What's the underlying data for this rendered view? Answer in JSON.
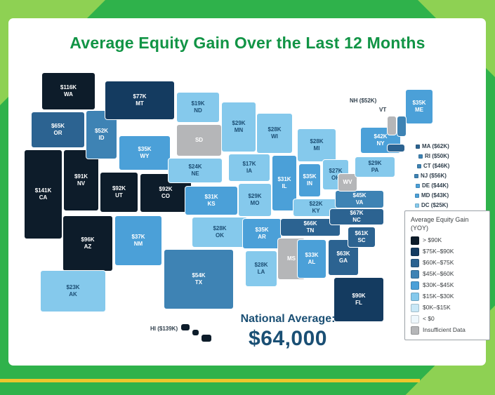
{
  "title": "Average Equity Gain Over the Last 12 Months",
  "national_average": {
    "label": "National Average:",
    "value": "$64,000"
  },
  "legend": {
    "title": "Average Equity Gain (YOY)",
    "items": [
      {
        "label": "> $90K",
        "color": "#0d1c2a"
      },
      {
        "label": "$75K–$90K",
        "color": "#143b60"
      },
      {
        "label": "$60K–$75K",
        "color": "#2c6391"
      },
      {
        "label": "$45K–$60K",
        "color": "#3e83b4"
      },
      {
        "label": "$30K–$45K",
        "color": "#4ba0d8"
      },
      {
        "label": "$15K–$30K",
        "color": "#85c9ec"
      },
      {
        "label": "$0K–$15K",
        "color": "#c9e8f7"
      },
      {
        "label": "< $0",
        "color": "#eef7fc"
      },
      {
        "label": "Insufficient Data",
        "color": "#b5b6b8"
      }
    ]
  },
  "map": {
    "states": [
      {
        "abbr": "WA",
        "value": "$116K",
        "bucket": 0
      },
      {
        "abbr": "OR",
        "value": "$65K",
        "bucket": 2
      },
      {
        "abbr": "CA",
        "value": "$141K",
        "bucket": 0
      },
      {
        "abbr": "NV",
        "value": "$91K",
        "bucket": 0
      },
      {
        "abbr": "ID",
        "value": "$52K",
        "bucket": 3
      },
      {
        "abbr": "MT",
        "value": "$77K",
        "bucket": 1
      },
      {
        "abbr": "WY",
        "value": "$35K",
        "bucket": 4
      },
      {
        "abbr": "UT",
        "value": "$92K",
        "bucket": 0
      },
      {
        "abbr": "CO",
        "value": "$92K",
        "bucket": 0
      },
      {
        "abbr": "AZ",
        "value": "$96K",
        "bucket": 0
      },
      {
        "abbr": "NM",
        "value": "$37K",
        "bucket": 4
      },
      {
        "abbr": "ND",
        "value": "$19K",
        "bucket": 5
      },
      {
        "abbr": "SD",
        "value": "",
        "bucket": 8
      },
      {
        "abbr": "NE",
        "value": "$24K",
        "bucket": 5
      },
      {
        "abbr": "KS",
        "value": "$31K",
        "bucket": 4
      },
      {
        "abbr": "OK",
        "value": "$28K",
        "bucket": 5
      },
      {
        "abbr": "TX",
        "value": "$54K",
        "bucket": 3
      },
      {
        "abbr": "MN",
        "value": "$29K",
        "bucket": 5
      },
      {
        "abbr": "IA",
        "value": "$17K",
        "bucket": 5
      },
      {
        "abbr": "MO",
        "value": "$29K",
        "bucket": 5
      },
      {
        "abbr": "AR",
        "value": "$35K",
        "bucket": 4
      },
      {
        "abbr": "LA",
        "value": "$28K",
        "bucket": 5
      },
      {
        "abbr": "WI",
        "value": "$28K",
        "bucket": 5
      },
      {
        "abbr": "IL",
        "value": "$31K",
        "bucket": 4
      },
      {
        "abbr": "MS",
        "value": "",
        "bucket": 8
      },
      {
        "abbr": "MI",
        "value": "$28K",
        "bucket": 5
      },
      {
        "abbr": "IN",
        "value": "$35K",
        "bucket": 4
      },
      {
        "abbr": "OH",
        "value": "$27K",
        "bucket": 5
      },
      {
        "abbr": "KY",
        "value": "$22K",
        "bucket": 5
      },
      {
        "abbr": "TN",
        "value": "$66K",
        "bucket": 2
      },
      {
        "abbr": "AL",
        "value": "$33K",
        "bucket": 4
      },
      {
        "abbr": "GA",
        "value": "$63K",
        "bucket": 2
      },
      {
        "abbr": "SC",
        "value": "$61K",
        "bucket": 2
      },
      {
        "abbr": "NC",
        "value": "$67K",
        "bucket": 2
      },
      {
        "abbr": "VA",
        "value": "$45K",
        "bucket": 3
      },
      {
        "abbr": "WV",
        "value": "",
        "bucket": 8
      },
      {
        "abbr": "NY",
        "value": "$42K",
        "bucket": 4
      },
      {
        "abbr": "PA",
        "value": "$29K",
        "bucket": 5
      },
      {
        "abbr": "FL",
        "value": "$90K",
        "bucket": 1
      },
      {
        "abbr": "ME",
        "value": "$35K",
        "bucket": 4
      },
      {
        "abbr": "AK",
        "value": "$23K",
        "bucket": 5
      },
      {
        "abbr": "VT",
        "value": "",
        "bucket": 8,
        "label": false
      },
      {
        "abbr": "NH",
        "value": "",
        "bucket": 3,
        "label": false
      },
      {
        "abbr": "MA",
        "value": "",
        "bucket": 2,
        "label": false
      }
    ],
    "callouts": [
      {
        "id": "NH",
        "text": "NH ($52K)",
        "bucket": 3,
        "chip": false
      },
      {
        "id": "VT",
        "text": "VT",
        "bucket": 8,
        "chip": false
      },
      {
        "id": "MA",
        "text": "MA ($62K)",
        "bucket": 2,
        "chip": true
      },
      {
        "id": "RI",
        "text": "RI ($50K)",
        "bucket": 3,
        "chip": true
      },
      {
        "id": "CT",
        "text": "CT ($46K)",
        "bucket": 3,
        "chip": true
      },
      {
        "id": "NJ",
        "text": "NJ ($56K)",
        "bucket": 3,
        "chip": true
      },
      {
        "id": "DE",
        "text": "DE ($44K)",
        "bucket": 4,
        "chip": true
      },
      {
        "id": "MD",
        "text": "MD ($43K)",
        "bucket": 4,
        "chip": true
      },
      {
        "id": "DC",
        "text": "DC ($25K)",
        "bucket": 5,
        "chip": true
      },
      {
        "id": "HI",
        "text": "HI ($139K)",
        "bucket": 0,
        "chip": false
      }
    ]
  }
}
